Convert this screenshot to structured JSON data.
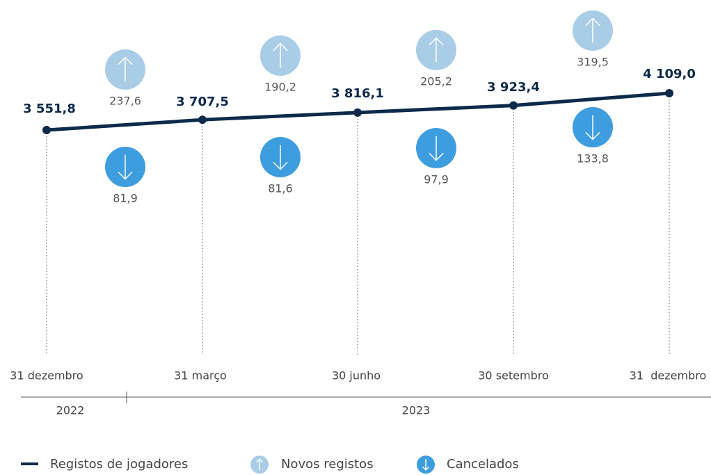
{
  "chart_data": {
    "type": "line",
    "categories": [
      "31 dezembro",
      "31 março",
      "30 junho",
      "30 setembro",
      "31  dezembro"
    ],
    "years": [
      "2022",
      "2023"
    ],
    "series": [
      {
        "name": "Registos de jogadores",
        "color": "#0d2a4a",
        "values": [
          3551.8,
          3707.5,
          3816.1,
          3923.4,
          4109.0
        ],
        "value_labels": [
          "3 551,8",
          "3 707,5",
          "3 816,1",
          "3 923,4",
          "4 109,0"
        ]
      },
      {
        "name": "Novos registos",
        "color": "#a9cde7",
        "values": [
          null,
          237.6,
          190.2,
          205.2,
          319.5
        ],
        "value_labels": [
          null,
          "237,6",
          "190,2",
          "205,2",
          "319,5"
        ]
      },
      {
        "name": "Cancelados",
        "color": "#3d9ddf",
        "values": [
          null,
          81.9,
          81.6,
          97.9,
          133.8
        ],
        "value_labels": [
          null,
          "81,9",
          "81,6",
          "97,9",
          "133,8"
        ]
      }
    ]
  }
}
